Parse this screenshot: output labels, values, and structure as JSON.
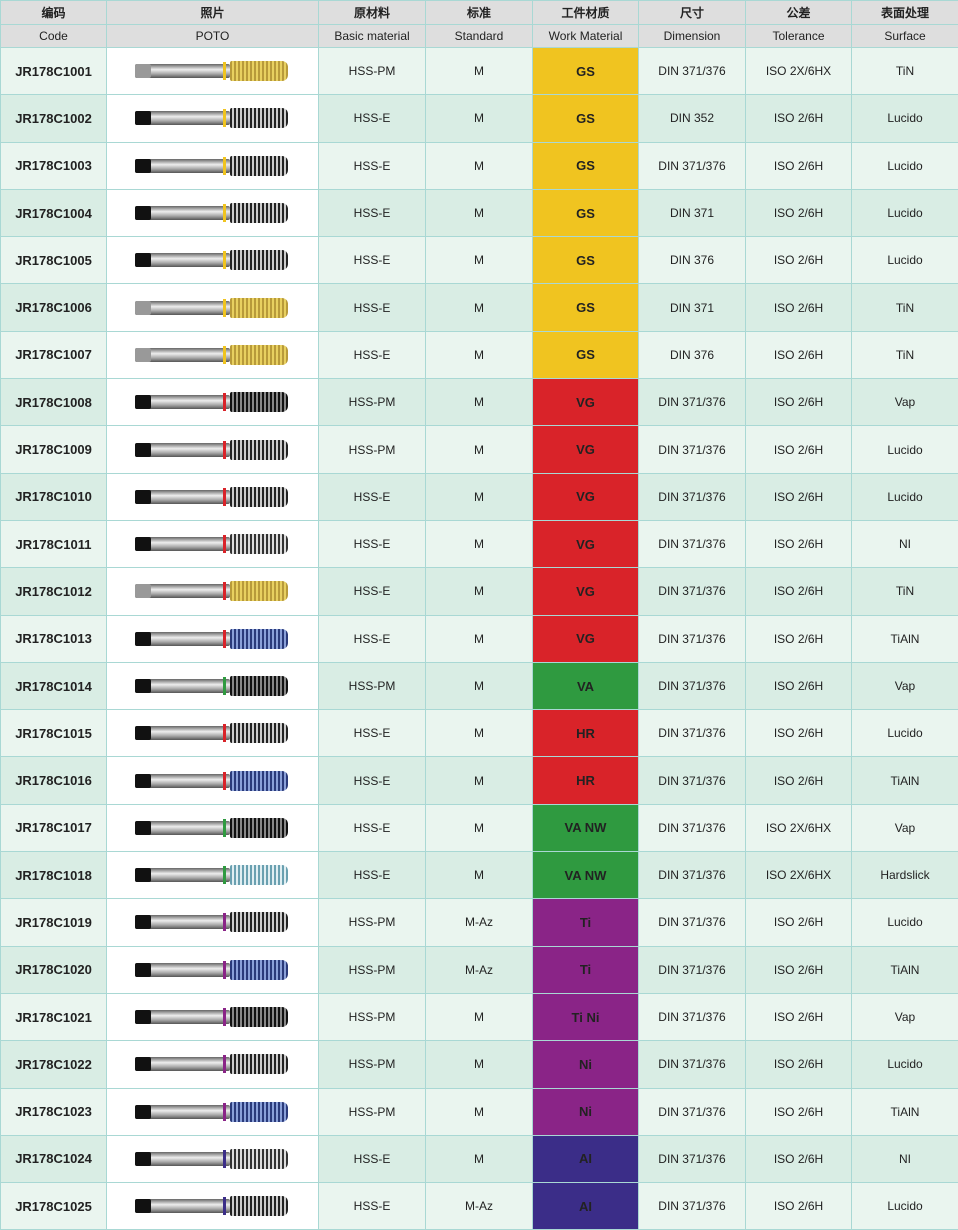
{
  "headers_cn": [
    "编码",
    "照片",
    "原材料",
    "标准",
    "工件材质",
    "尺寸",
    "公差",
    "表面处理"
  ],
  "headers_en": [
    "Code",
    "POTO",
    "Basic material",
    "Standard",
    "Work Material",
    "Dimension",
    "Tolerance",
    "Surface"
  ],
  "material_colors": {
    "GS": "#f0c420",
    "VG": "#d92329",
    "VA": "#2f9a40",
    "HR": "#d92329",
    "VA NW": "#2f9a40",
    "Ti": "#8a2487",
    "Ti Ni": "#8a2487",
    "Ni": "#8a2487",
    "AI": "#3b2d88"
  },
  "rows": [
    {
      "code": "JR178C1001",
      "material": "HSS-PM",
      "standard": "M",
      "work": "GS",
      "dimension": "DIN 371/376",
      "tolerance": "ISO 2X/6HX",
      "surface": "TiN"
    },
    {
      "code": "JR178C1002",
      "material": "HSS-E",
      "standard": "M",
      "work": "GS",
      "dimension": "DIN 352",
      "tolerance": "ISO 2/6H",
      "surface": "Lucido"
    },
    {
      "code": "JR178C1003",
      "material": "HSS-E",
      "standard": "M",
      "work": "GS",
      "dimension": "DIN 371/376",
      "tolerance": "ISO 2/6H",
      "surface": "Lucido"
    },
    {
      "code": "JR178C1004",
      "material": "HSS-E",
      "standard": "M",
      "work": "GS",
      "dimension": "DIN 371",
      "tolerance": "ISO 2/6H",
      "surface": "Lucido"
    },
    {
      "code": "JR178C1005",
      "material": "HSS-E",
      "standard": "M",
      "work": "GS",
      "dimension": "DIN 376",
      "tolerance": "ISO 2/6H",
      "surface": "Lucido"
    },
    {
      "code": "JR178C1006",
      "material": "HSS-E",
      "standard": "M",
      "work": "GS",
      "dimension": "DIN 371",
      "tolerance": "ISO 2/6H",
      "surface": "TiN"
    },
    {
      "code": "JR178C1007",
      "material": "HSS-E",
      "standard": "M",
      "work": "GS",
      "dimension": "DIN 376",
      "tolerance": "ISO 2/6H",
      "surface": "TiN"
    },
    {
      "code": "JR178C1008",
      "material": "HSS-PM",
      "standard": "M",
      "work": "VG",
      "dimension": "DIN 371/376",
      "tolerance": "ISO 2/6H",
      "surface": "Vap"
    },
    {
      "code": "JR178C1009",
      "material": "HSS-PM",
      "standard": "M",
      "work": "VG",
      "dimension": "DIN 371/376",
      "tolerance": "ISO 2/6H",
      "surface": "Lucido"
    },
    {
      "code": "JR178C1010",
      "material": "HSS-E",
      "standard": "M",
      "work": "VG",
      "dimension": "DIN 371/376",
      "tolerance": "ISO 2/6H",
      "surface": "Lucido"
    },
    {
      "code": "JR178C1011",
      "material": "HSS-E",
      "standard": "M",
      "work": "VG",
      "dimension": "DIN 371/376",
      "tolerance": "ISO 2/6H",
      "surface": "NI"
    },
    {
      "code": "JR178C1012",
      "material": "HSS-E",
      "standard": "M",
      "work": "VG",
      "dimension": "DIN 371/376",
      "tolerance": "ISO 2/6H",
      "surface": "TiN"
    },
    {
      "code": "JR178C1013",
      "material": "HSS-E",
      "standard": "M",
      "work": "VG",
      "dimension": "DIN 371/376",
      "tolerance": "ISO 2/6H",
      "surface": "TiAlN"
    },
    {
      "code": "JR178C1014",
      "material": "HSS-PM",
      "standard": "M",
      "work": "VA",
      "dimension": "DIN 371/376",
      "tolerance": "ISO 2/6H",
      "surface": "Vap"
    },
    {
      "code": "JR178C1015",
      "material": "HSS-E",
      "standard": "M",
      "work": "HR",
      "dimension": "DIN 371/376",
      "tolerance": "ISO 2/6H",
      "surface": "Lucido"
    },
    {
      "code": "JR178C1016",
      "material": "HSS-E",
      "standard": "M",
      "work": "HR",
      "dimension": "DIN 371/376",
      "tolerance": "ISO 2/6H",
      "surface": "TiAlN"
    },
    {
      "code": "JR178C1017",
      "material": "HSS-E",
      "standard": "M",
      "work": "VA NW",
      "dimension": "DIN 371/376",
      "tolerance": "ISO 2X/6HX",
      "surface": "Vap"
    },
    {
      "code": "JR178C1018",
      "material": "HSS-E",
      "standard": "M",
      "work": "VA NW",
      "dimension": "DIN 371/376",
      "tolerance": "ISO 2X/6HX",
      "surface": "Hardslick"
    },
    {
      "code": "JR178C1019",
      "material": "HSS-PM",
      "standard": "M-Az",
      "work": "Ti",
      "dimension": "DIN 371/376",
      "tolerance": "ISO 2/6H",
      "surface": "Lucido"
    },
    {
      "code": "JR178C1020",
      "material": "HSS-PM",
      "standard": "M-Az",
      "work": "Ti",
      "dimension": "DIN 371/376",
      "tolerance": "ISO 2/6H",
      "surface": "TiAlN"
    },
    {
      "code": "JR178C1021",
      "material": "HSS-PM",
      "standard": "M",
      "work": "Ti Ni",
      "dimension": "DIN 371/376",
      "tolerance": "ISO 2/6H",
      "surface": "Vap"
    },
    {
      "code": "JR178C1022",
      "material": "HSS-PM",
      "standard": "M",
      "work": "Ni",
      "dimension": "DIN 371/376",
      "tolerance": "ISO 2/6H",
      "surface": "Lucido"
    },
    {
      "code": "JR178C1023",
      "material": "HSS-PM",
      "standard": "M",
      "work": "Ni",
      "dimension": "DIN 371/376",
      "tolerance": "ISO 2/6H",
      "surface": "TiAlN"
    },
    {
      "code": "JR178C1024",
      "material": "HSS-E",
      "standard": "M",
      "work": "AI",
      "dimension": "DIN 371/376",
      "tolerance": "ISO 2/6H",
      "surface": "NI"
    },
    {
      "code": "JR178C1025",
      "material": "HSS-E",
      "standard": "M-Az",
      "work": "AI",
      "dimension": "DIN 371/376",
      "tolerance": "ISO 2/6H",
      "surface": "Lucido"
    }
  ]
}
